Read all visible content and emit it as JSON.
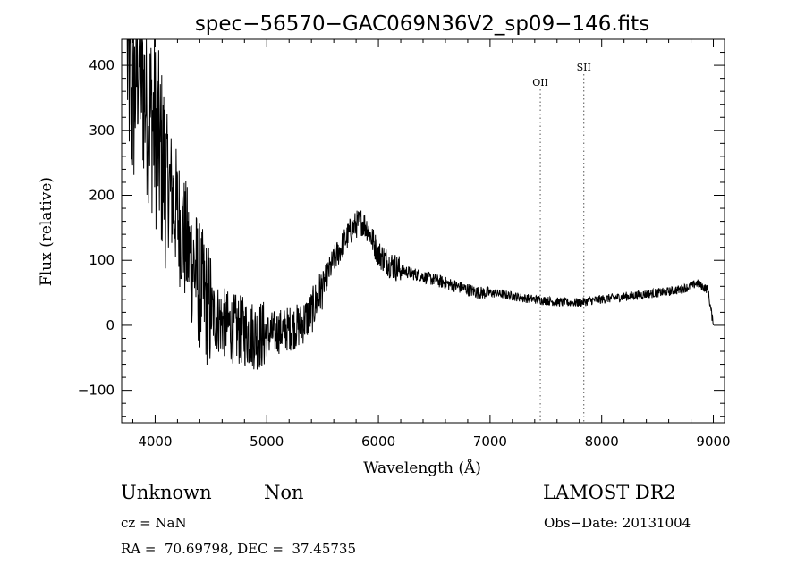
{
  "chart_data": {
    "type": "line",
    "title": "spec−56570−GAC069N36V2_sp09−146.fits",
    "xlabel": "Wavelength (Å)",
    "ylabel": "Flux (relative)",
    "xlim": [
      3700,
      9100
    ],
    "ylim": [
      -150,
      440
    ],
    "xticks": [
      4000,
      5000,
      6000,
      7000,
      8000,
      9000
    ],
    "xtick_labels": [
      "4000",
      "5000",
      "6000",
      "7000",
      "8000",
      "9000"
    ],
    "yticks": [
      -100,
      0,
      100,
      200,
      300,
      400
    ],
    "ytick_labels": [
      "−100",
      "0",
      "100",
      "200",
      "300",
      "400"
    ],
    "grid": false,
    "series": [
      {
        "x": [
          3750,
          3800,
          3850,
          3900,
          3950,
          4000,
          4050,
          4100,
          4150,
          4200,
          4250,
          4300,
          4350,
          4400,
          4450,
          4500,
          4600,
          4700,
          4800,
          4900,
          5000,
          5100,
          5200,
          5300,
          5400,
          5450,
          5500,
          5550,
          5600,
          5650,
          5700,
          5750,
          5800,
          5850,
          5900,
          5950,
          6000,
          6100,
          6200,
          6300,
          6400,
          6500,
          6600,
          6700,
          6800,
          6900,
          7000,
          7100,
          7200,
          7300,
          7400,
          7500,
          7600,
          7700,
          7800,
          7900,
          8000,
          8100,
          8200,
          8300,
          8400,
          8500,
          8600,
          8700,
          8800,
          8850,
          8900,
          8950,
          9000
        ],
        "y": [
          410,
          330,
          420,
          360,
          330,
          300,
          260,
          230,
          200,
          170,
          140,
          110,
          90,
          60,
          40,
          20,
          5,
          -5,
          -10,
          -15,
          -15,
          -10,
          -5,
          0,
          20,
          40,
          60,
          80,
          100,
          115,
          130,
          145,
          155,
          160,
          150,
          130,
          110,
          95,
          85,
          80,
          75,
          70,
          65,
          60,
          55,
          50,
          50,
          48,
          45,
          42,
          40,
          38,
          36,
          35,
          35,
          38,
          40,
          42,
          44,
          46,
          48,
          50,
          52,
          55,
          60,
          65,
          60,
          55,
          0
        ]
      }
    ],
    "annotations": [
      {
        "label": "OII",
        "x": 7450
      },
      {
        "label": "SII",
        "x": 7840
      }
    ]
  },
  "info": {
    "class": "Unknown",
    "subclass": "Non",
    "survey": "LAMOST DR2",
    "cz": "cz = NaN",
    "obs_date": "Obs−Date: 20131004",
    "radec": "RA =  70.69798, DEC =  37.45735"
  }
}
